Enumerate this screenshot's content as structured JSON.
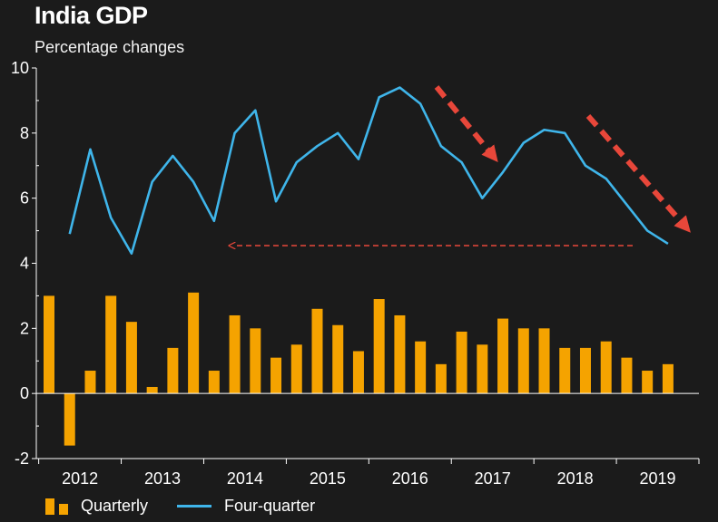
{
  "title": "India GDP",
  "subtitle": "Percentage changes",
  "colors": {
    "bar": "#f5a300",
    "line": "#3fb5ea",
    "arrow": "#e8473a",
    "background": "#1b1b1b",
    "axis": "#ffffff"
  },
  "legend": {
    "quarterly": "Quarterly",
    "four_quarter": "Four-quarter"
  },
  "chart_data": {
    "type": "bar+line",
    "title": "India GDP",
    "subtitle": "Percentage changes",
    "ylim": [
      -2,
      10
    ],
    "yticks": [
      "-2",
      "0",
      "2",
      "4",
      "6",
      "8",
      "10"
    ],
    "xticks": [
      "2012",
      "2013",
      "2014",
      "2015",
      "2016",
      "2017",
      "2018",
      "2019"
    ],
    "series": [
      {
        "name": "Quarterly",
        "kind": "bar",
        "values": [
          3.0,
          -1.6,
          0.7,
          3.0,
          2.2,
          0.2,
          1.4,
          3.1,
          0.7,
          2.4,
          2.0,
          1.1,
          1.5,
          2.6,
          2.1,
          1.3,
          2.9,
          2.4,
          1.6,
          0.9,
          1.9,
          1.5,
          2.3,
          2.0,
          2.0,
          1.4,
          1.4,
          1.6,
          1.1,
          0.7,
          0.9
        ]
      },
      {
        "name": "Four-quarter",
        "kind": "line",
        "values": [
          null,
          4.9,
          7.5,
          5.4,
          4.3,
          6.5,
          7.3,
          6.5,
          5.3,
          8.0,
          8.7,
          5.9,
          7.1,
          7.6,
          8.0,
          7.2,
          9.1,
          9.4,
          8.9,
          7.6,
          7.1,
          6.0,
          6.8,
          7.7,
          8.1,
          8.0,
          7.0,
          6.6,
          5.8,
          5.0,
          4.6
        ]
      }
    ],
    "annotations": [
      {
        "type": "dashed-arrow",
        "description": "downtrend 2016"
      },
      {
        "type": "dashed-arrow",
        "description": "downtrend 2018-2019"
      },
      {
        "type": "dashed-arrow",
        "description": "back to 2014 level"
      }
    ]
  }
}
